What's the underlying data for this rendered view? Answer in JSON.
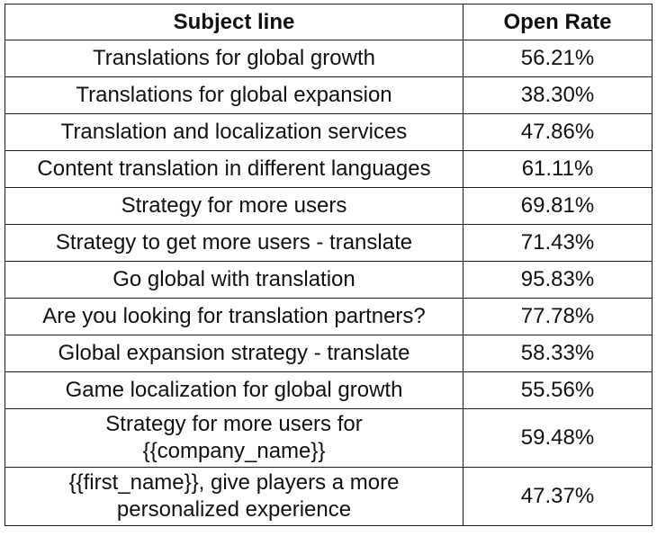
{
  "table": {
    "headers": [
      "Subject line",
      "Open Rate"
    ],
    "rows": [
      {
        "subject": "Translations for global growth",
        "rate": "56.21%"
      },
      {
        "subject": "Translations for global expansion",
        "rate": "38.30%"
      },
      {
        "subject": "Translation and localization services",
        "rate": "47.86%"
      },
      {
        "subject": "Content translation in different languages",
        "rate": "61.11%"
      },
      {
        "subject": "Strategy for more users",
        "rate": "69.81%"
      },
      {
        "subject": "Strategy to get more users - translate",
        "rate": "71.43%"
      },
      {
        "subject": "Go global with translation",
        "rate": "95.83%"
      },
      {
        "subject": "Are you looking for translation partners?",
        "rate": "77.78%"
      },
      {
        "subject": "Global expansion strategy - translate",
        "rate": "58.33%"
      },
      {
        "subject": "Game localization for global growth",
        "rate": "55.56%"
      },
      {
        "subject": "Strategy for more users for {{company_name}}",
        "rate": "59.48%"
      },
      {
        "subject": "{{first_name}}, give players a more personalized experience",
        "rate": "47.37%"
      }
    ]
  }
}
